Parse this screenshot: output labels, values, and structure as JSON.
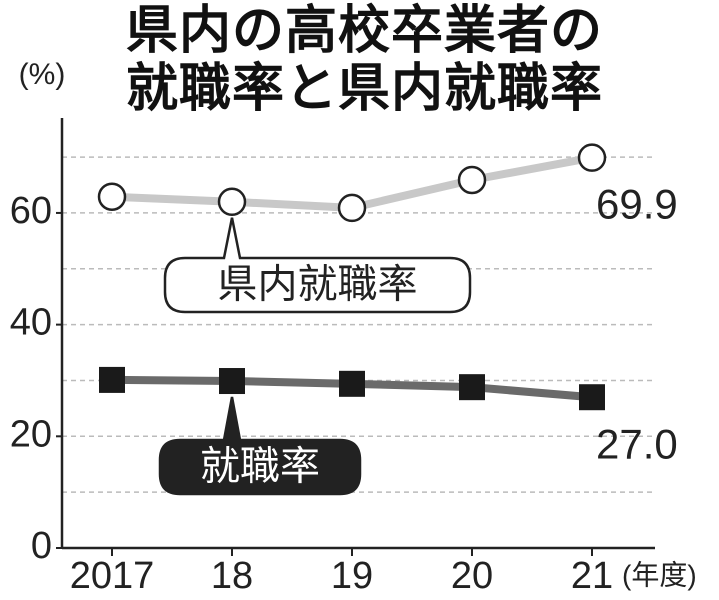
{
  "chart_data": {
    "type": "line",
    "title": "県内の高校卒業者の就職率と県内就職率",
    "y_unit": "(%)",
    "x_unit": "(年度)",
    "categories": [
      "2017",
      "18",
      "19",
      "20",
      "21"
    ],
    "series": [
      {
        "name": "県内就職率",
        "color": "#c8c8c8",
        "marker": "circle-open",
        "values": [
          62.9,
          62.0,
          60.9,
          65.9,
          69.9
        ],
        "value_labels": [
          null,
          null,
          null,
          null,
          "69.9"
        ]
      },
      {
        "name": "就職率",
        "color": "#6a6a6a",
        "marker": "square",
        "values": [
          30.1,
          29.9,
          29.4,
          28.8,
          27.0
        ],
        "value_labels": [
          null,
          null,
          null,
          null,
          "27.0"
        ]
      }
    ],
    "ylim": [
      0,
      77
    ],
    "yticks": [
      0,
      20,
      40,
      60
    ],
    "grid": true,
    "grid_lines": [
      10,
      20,
      30,
      40,
      50,
      60,
      70
    ]
  }
}
